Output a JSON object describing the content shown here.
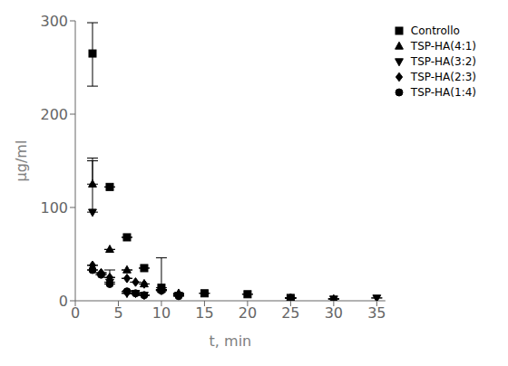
{
  "chart_data": {
    "type": "scatter",
    "xlabel": "t, min",
    "ylabel": "µg/ml",
    "color": "#000000",
    "legend": "upper right",
    "grid": false,
    "xlim": [
      0,
      36
    ],
    "ylim": [
      0,
      300
    ],
    "xticks": [
      0,
      5,
      10,
      15,
      20,
      25,
      30,
      35
    ],
    "yticks": [
      0,
      100,
      200,
      300
    ],
    "series": [
      {
        "name": "Controllo",
        "marker": "square",
        "x": [
          2,
          4,
          6,
          8,
          10,
          15,
          20,
          25
        ],
        "values": [
          265,
          122,
          68,
          35,
          14,
          8,
          7,
          3
        ],
        "yerr_low": [
          35,
          0,
          0,
          0,
          0,
          0,
          0,
          0
        ],
        "yerr_high": [
          33,
          0,
          0,
          0,
          32,
          0,
          0,
          0
        ]
      },
      {
        "name": "TSP-HA(4:1)",
        "marker": "triangle_up",
        "x": [
          2,
          4,
          6,
          8,
          10,
          12,
          25,
          30
        ],
        "values": [
          125,
          55,
          33,
          18,
          12,
          8,
          3,
          2
        ],
        "yerr_low": [
          0,
          0,
          0,
          0,
          0,
          0,
          0,
          0
        ],
        "yerr_high": [
          28,
          0,
          0,
          0,
          0,
          0,
          0,
          0
        ]
      },
      {
        "name": "TSP-HA(3:2)",
        "marker": "triangle_down",
        "x": [
          2,
          4,
          6,
          7,
          8,
          10,
          12,
          30,
          35
        ],
        "values": [
          95,
          20,
          8,
          8,
          6,
          11,
          6,
          2,
          3
        ],
        "yerr_low": [
          0,
          0,
          0,
          0,
          0,
          0,
          0,
          0,
          0
        ],
        "yerr_high": [
          55,
          13,
          0,
          0,
          0,
          0,
          0,
          0,
          0
        ]
      },
      {
        "name": "TSP-HA(2:3)",
        "marker": "diamond",
        "x": [
          2,
          3,
          4,
          6,
          7,
          8,
          10,
          12,
          25
        ],
        "values": [
          38,
          30,
          25,
          24,
          20,
          18,
          12,
          7,
          3
        ],
        "yerr_low": [
          0,
          0,
          0,
          0,
          0,
          0,
          0,
          0,
          0
        ],
        "yerr_high": [
          0,
          0,
          0,
          0,
          0,
          0,
          0,
          0,
          0
        ]
      },
      {
        "name": "TSP-HA(1:4)",
        "marker": "circle",
        "x": [
          2,
          3,
          4,
          6,
          7,
          8,
          10,
          12,
          25
        ],
        "values": [
          33,
          28,
          18,
          10,
          8,
          6,
          11,
          5,
          3
        ],
        "yerr_low": [
          0,
          0,
          0,
          0,
          0,
          0,
          0,
          0,
          0
        ],
        "yerr_high": [
          0,
          0,
          0,
          0,
          0,
          0,
          0,
          0,
          0
        ]
      }
    ]
  }
}
